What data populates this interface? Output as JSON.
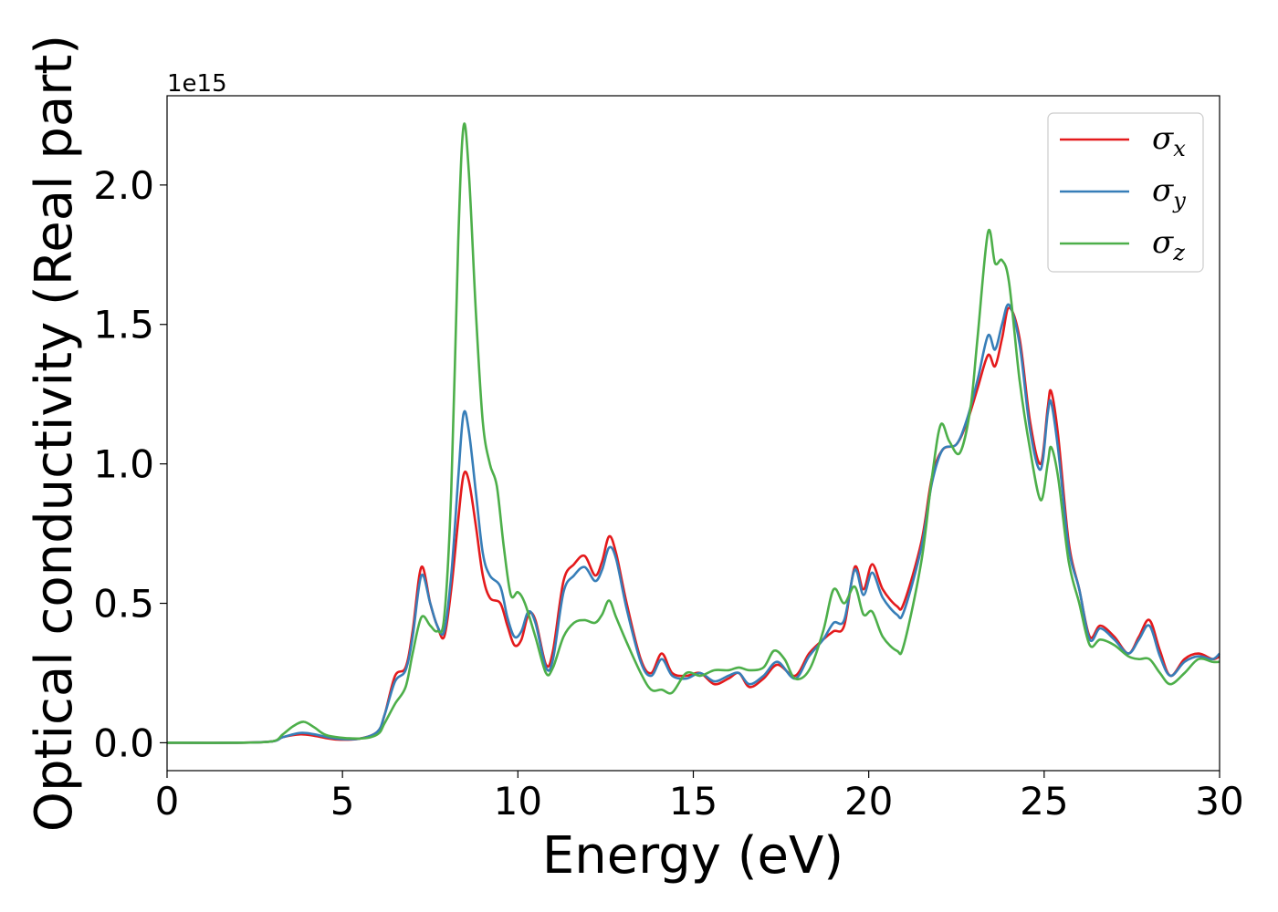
{
  "chart_data": {
    "type": "line",
    "xlabel": "Energy (eV)",
    "ylabel": "Optical conductivity (Real part)",
    "y_offset_label": "1e15",
    "xlim": [
      0,
      30
    ],
    "ylim": [
      -0.1,
      2.32
    ],
    "xticks": [
      "0",
      "5",
      "10",
      "15",
      "20",
      "25",
      "30"
    ],
    "yticks": [
      "0.0",
      "0.5",
      "1.0",
      "1.5",
      "2.0"
    ],
    "grid": false,
    "legend_position": "top-right",
    "series": [
      {
        "name": "σx",
        "symbol": "σ",
        "subscript": "x",
        "color": "#e41a1c",
        "points": [
          [
            0,
            0
          ],
          [
            2,
            0
          ],
          [
            3,
            0.005
          ],
          [
            3.3,
            0.02
          ],
          [
            3.8,
            0.03
          ],
          [
            4.2,
            0.025
          ],
          [
            4.8,
            0.012
          ],
          [
            5.5,
            0.015
          ],
          [
            6,
            0.04
          ],
          [
            6.2,
            0.1
          ],
          [
            6.5,
            0.24
          ],
          [
            6.8,
            0.27
          ],
          [
            7,
            0.4
          ],
          [
            7.25,
            0.63
          ],
          [
            7.5,
            0.5
          ],
          [
            7.7,
            0.42
          ],
          [
            7.9,
            0.38
          ],
          [
            8.1,
            0.55
          ],
          [
            8.3,
            0.8
          ],
          [
            8.45,
            0.96
          ],
          [
            8.6,
            0.94
          ],
          [
            8.8,
            0.78
          ],
          [
            9,
            0.6
          ],
          [
            9.2,
            0.52
          ],
          [
            9.5,
            0.5
          ],
          [
            9.7,
            0.42
          ],
          [
            9.9,
            0.35
          ],
          [
            10.1,
            0.37
          ],
          [
            10.3,
            0.46
          ],
          [
            10.5,
            0.44
          ],
          [
            10.8,
            0.28
          ],
          [
            11,
            0.33
          ],
          [
            11.3,
            0.58
          ],
          [
            11.6,
            0.64
          ],
          [
            11.9,
            0.67
          ],
          [
            12.2,
            0.6
          ],
          [
            12.4,
            0.65
          ],
          [
            12.6,
            0.74
          ],
          [
            12.8,
            0.68
          ],
          [
            13.1,
            0.5
          ],
          [
            13.5,
            0.3
          ],
          [
            13.8,
            0.25
          ],
          [
            14.1,
            0.32
          ],
          [
            14.4,
            0.25
          ],
          [
            14.8,
            0.24
          ],
          [
            15.2,
            0.25
          ],
          [
            15.6,
            0.21
          ],
          [
            16,
            0.23
          ],
          [
            16.3,
            0.25
          ],
          [
            16.6,
            0.2
          ],
          [
            17,
            0.23
          ],
          [
            17.4,
            0.28
          ],
          [
            17.9,
            0.24
          ],
          [
            18.3,
            0.32
          ],
          [
            18.7,
            0.37
          ],
          [
            19,
            0.4
          ],
          [
            19.3,
            0.42
          ],
          [
            19.6,
            0.63
          ],
          [
            19.85,
            0.55
          ],
          [
            20.1,
            0.64
          ],
          [
            20.4,
            0.55
          ],
          [
            20.8,
            0.49
          ],
          [
            21,
            0.5
          ],
          [
            21.5,
            0.72
          ],
          [
            21.8,
            0.95
          ],
          [
            22.1,
            1.05
          ],
          [
            22.5,
            1.07
          ],
          [
            22.8,
            1.15
          ],
          [
            23.1,
            1.27
          ],
          [
            23.4,
            1.39
          ],
          [
            23.6,
            1.35
          ],
          [
            23.8,
            1.45
          ],
          [
            24,
            1.56
          ],
          [
            24.3,
            1.45
          ],
          [
            24.6,
            1.15
          ],
          [
            24.9,
            1.0
          ],
          [
            25.1,
            1.2
          ],
          [
            25.2,
            1.26
          ],
          [
            25.4,
            1.1
          ],
          [
            25.7,
            0.72
          ],
          [
            26,
            0.55
          ],
          [
            26.3,
            0.38
          ],
          [
            26.6,
            0.42
          ],
          [
            27,
            0.38
          ],
          [
            27.4,
            0.32
          ],
          [
            27.7,
            0.38
          ],
          [
            28,
            0.44
          ],
          [
            28.3,
            0.33
          ],
          [
            28.6,
            0.24
          ],
          [
            29,
            0.3
          ],
          [
            29.4,
            0.32
          ],
          [
            29.8,
            0.3
          ],
          [
            30,
            0.31
          ]
        ]
      },
      {
        "name": "σy",
        "symbol": "σ",
        "subscript": "y",
        "color": "#377eb8",
        "points": [
          [
            0,
            0
          ],
          [
            2,
            0
          ],
          [
            3,
            0.005
          ],
          [
            3.3,
            0.02
          ],
          [
            3.8,
            0.035
          ],
          [
            4.2,
            0.03
          ],
          [
            4.8,
            0.015
          ],
          [
            5.5,
            0.015
          ],
          [
            6,
            0.04
          ],
          [
            6.2,
            0.1
          ],
          [
            6.5,
            0.22
          ],
          [
            6.8,
            0.26
          ],
          [
            7,
            0.38
          ],
          [
            7.25,
            0.6
          ],
          [
            7.5,
            0.5
          ],
          [
            7.7,
            0.42
          ],
          [
            7.9,
            0.4
          ],
          [
            8.1,
            0.6
          ],
          [
            8.3,
            0.95
          ],
          [
            8.45,
            1.18
          ],
          [
            8.6,
            1.12
          ],
          [
            8.8,
            0.9
          ],
          [
            9,
            0.68
          ],
          [
            9.2,
            0.6
          ],
          [
            9.5,
            0.56
          ],
          [
            9.7,
            0.45
          ],
          [
            9.9,
            0.38
          ],
          [
            10.1,
            0.4
          ],
          [
            10.3,
            0.47
          ],
          [
            10.5,
            0.43
          ],
          [
            10.8,
            0.27
          ],
          [
            11,
            0.3
          ],
          [
            11.3,
            0.54
          ],
          [
            11.6,
            0.6
          ],
          [
            11.9,
            0.63
          ],
          [
            12.2,
            0.58
          ],
          [
            12.4,
            0.62
          ],
          [
            12.6,
            0.7
          ],
          [
            12.8,
            0.66
          ],
          [
            13.1,
            0.48
          ],
          [
            13.5,
            0.29
          ],
          [
            13.8,
            0.24
          ],
          [
            14.1,
            0.3
          ],
          [
            14.4,
            0.24
          ],
          [
            14.8,
            0.23
          ],
          [
            15.2,
            0.25
          ],
          [
            15.6,
            0.22
          ],
          [
            16,
            0.24
          ],
          [
            16.3,
            0.25
          ],
          [
            16.6,
            0.21
          ],
          [
            17,
            0.24
          ],
          [
            17.4,
            0.29
          ],
          [
            17.9,
            0.23
          ],
          [
            18.3,
            0.31
          ],
          [
            18.7,
            0.37
          ],
          [
            19,
            0.43
          ],
          [
            19.3,
            0.44
          ],
          [
            19.6,
            0.62
          ],
          [
            19.85,
            0.53
          ],
          [
            20.1,
            0.61
          ],
          [
            20.4,
            0.52
          ],
          [
            20.8,
            0.46
          ],
          [
            21,
            0.47
          ],
          [
            21.5,
            0.7
          ],
          [
            21.8,
            0.93
          ],
          [
            22.1,
            1.05
          ],
          [
            22.5,
            1.07
          ],
          [
            22.8,
            1.16
          ],
          [
            23.1,
            1.3
          ],
          [
            23.4,
            1.46
          ],
          [
            23.6,
            1.41
          ],
          [
            23.8,
            1.5
          ],
          [
            24,
            1.57
          ],
          [
            24.3,
            1.43
          ],
          [
            24.6,
            1.12
          ],
          [
            24.9,
            0.98
          ],
          [
            25.1,
            1.18
          ],
          [
            25.2,
            1.22
          ],
          [
            25.4,
            1.05
          ],
          [
            25.7,
            0.7
          ],
          [
            26,
            0.55
          ],
          [
            26.3,
            0.37
          ],
          [
            26.6,
            0.41
          ],
          [
            27,
            0.37
          ],
          [
            27.4,
            0.32
          ],
          [
            27.7,
            0.37
          ],
          [
            28,
            0.42
          ],
          [
            28.3,
            0.31
          ],
          [
            28.6,
            0.24
          ],
          [
            29,
            0.29
          ],
          [
            29.4,
            0.31
          ],
          [
            29.8,
            0.3
          ],
          [
            30,
            0.32
          ]
        ]
      },
      {
        "name": "σz",
        "symbol": "σ",
        "subscript": "z",
        "color": "#4daf4a",
        "points": [
          [
            0,
            0
          ],
          [
            2,
            0
          ],
          [
            3,
            0.005
          ],
          [
            3.3,
            0.03
          ],
          [
            3.6,
            0.06
          ],
          [
            3.9,
            0.075
          ],
          [
            4.2,
            0.055
          ],
          [
            4.6,
            0.025
          ],
          [
            5.5,
            0.015
          ],
          [
            6,
            0.03
          ],
          [
            6.2,
            0.07
          ],
          [
            6.5,
            0.14
          ],
          [
            6.8,
            0.2
          ],
          [
            7,
            0.32
          ],
          [
            7.25,
            0.45
          ],
          [
            7.5,
            0.42
          ],
          [
            7.7,
            0.4
          ],
          [
            7.9,
            0.45
          ],
          [
            8.1,
            0.9
          ],
          [
            8.3,
            1.8
          ],
          [
            8.45,
            2.21
          ],
          [
            8.6,
            2.05
          ],
          [
            8.8,
            1.55
          ],
          [
            9,
            1.15
          ],
          [
            9.2,
            1.0
          ],
          [
            9.4,
            0.92
          ],
          [
            9.6,
            0.7
          ],
          [
            9.8,
            0.53
          ],
          [
            10,
            0.54
          ],
          [
            10.2,
            0.5
          ],
          [
            10.5,
            0.38
          ],
          [
            10.8,
            0.25
          ],
          [
            11,
            0.27
          ],
          [
            11.3,
            0.38
          ],
          [
            11.6,
            0.43
          ],
          [
            11.9,
            0.44
          ],
          [
            12.2,
            0.43
          ],
          [
            12.4,
            0.46
          ],
          [
            12.6,
            0.51
          ],
          [
            12.8,
            0.45
          ],
          [
            13.1,
            0.36
          ],
          [
            13.5,
            0.25
          ],
          [
            13.8,
            0.19
          ],
          [
            14.1,
            0.19
          ],
          [
            14.4,
            0.18
          ],
          [
            14.8,
            0.25
          ],
          [
            15.2,
            0.24
          ],
          [
            15.6,
            0.26
          ],
          [
            16,
            0.26
          ],
          [
            16.3,
            0.27
          ],
          [
            16.6,
            0.26
          ],
          [
            17,
            0.27
          ],
          [
            17.3,
            0.33
          ],
          [
            17.6,
            0.3
          ],
          [
            17.9,
            0.23
          ],
          [
            18.3,
            0.26
          ],
          [
            18.7,
            0.4
          ],
          [
            19,
            0.55
          ],
          [
            19.3,
            0.5
          ],
          [
            19.6,
            0.56
          ],
          [
            19.85,
            0.46
          ],
          [
            20.1,
            0.47
          ],
          [
            20.4,
            0.38
          ],
          [
            20.8,
            0.33
          ],
          [
            21,
            0.35
          ],
          [
            21.5,
            0.65
          ],
          [
            21.8,
            0.95
          ],
          [
            22.05,
            1.14
          ],
          [
            22.3,
            1.08
          ],
          [
            22.6,
            1.04
          ],
          [
            22.9,
            1.2
          ],
          [
            23.1,
            1.45
          ],
          [
            23.4,
            1.83
          ],
          [
            23.6,
            1.72
          ],
          [
            23.8,
            1.73
          ],
          [
            24,
            1.65
          ],
          [
            24.3,
            1.3
          ],
          [
            24.6,
            1.05
          ],
          [
            24.9,
            0.87
          ],
          [
            25.1,
            1.0
          ],
          [
            25.2,
            1.06
          ],
          [
            25.4,
            0.95
          ],
          [
            25.7,
            0.65
          ],
          [
            26,
            0.5
          ],
          [
            26.3,
            0.35
          ],
          [
            26.6,
            0.37
          ],
          [
            27,
            0.35
          ],
          [
            27.4,
            0.31
          ],
          [
            27.7,
            0.3
          ],
          [
            28,
            0.3
          ],
          [
            28.3,
            0.25
          ],
          [
            28.6,
            0.21
          ],
          [
            29,
            0.25
          ],
          [
            29.4,
            0.3
          ],
          [
            29.8,
            0.29
          ],
          [
            30,
            0.29
          ]
        ]
      }
    ]
  }
}
